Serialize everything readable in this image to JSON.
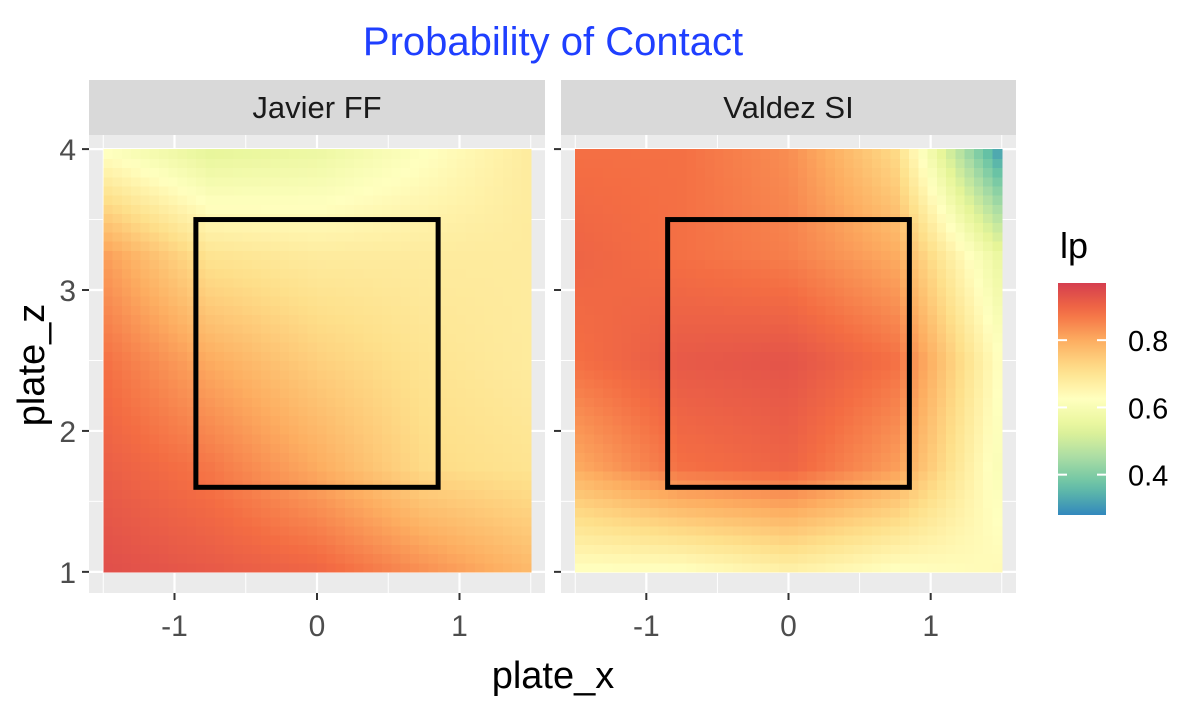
{
  "chart_data": {
    "type": "heatmap",
    "title": "Probability of Contact",
    "xlabel": "plate_x",
    "ylabel": "plate_z",
    "xlim": [
      -1.6,
      1.6
    ],
    "ylim": [
      0.85,
      4.1
    ],
    "x_ticks": [
      -1,
      0,
      1
    ],
    "x_tick_labels": [
      "-1",
      "0",
      "1"
    ],
    "y_ticks": [
      1,
      2,
      3,
      4
    ],
    "y_tick_labels": [
      "1",
      "2",
      "3",
      "4"
    ],
    "grid": true,
    "grid_range": {
      "x": [
        -1.5,
        1.5
      ],
      "z": [
        1.0,
        4.0
      ]
    },
    "strike_zone": {
      "x": [
        -0.85,
        0.85
      ],
      "z": [
        1.6,
        3.5
      ]
    },
    "panels": [
      {
        "name": "Javier FF",
        "z_x_coords": [
          -1.5,
          -0.75,
          0,
          0.75,
          1.5
        ],
        "z_z_coords": [
          4.0,
          3.25,
          2.5,
          1.75,
          1.0
        ],
        "lp_grid": [
          [
            0.62,
            0.54,
            0.56,
            0.62,
            0.68
          ],
          [
            0.82,
            0.7,
            0.68,
            0.68,
            0.68
          ],
          [
            0.88,
            0.8,
            0.74,
            0.7,
            0.68
          ],
          [
            0.91,
            0.87,
            0.8,
            0.72,
            0.7
          ],
          [
            0.94,
            0.92,
            0.9,
            0.84,
            0.78
          ]
        ]
      },
      {
        "name": "Valdez SI",
        "z_x_coords": [
          -1.5,
          -0.75,
          0,
          0.75,
          1.5
        ],
        "z_z_coords": [
          4.0,
          3.25,
          2.5,
          1.75,
          1.0
        ],
        "lp_grid": [
          [
            0.88,
            0.88,
            0.84,
            0.72,
            0.3
          ],
          [
            0.9,
            0.88,
            0.86,
            0.8,
            0.55
          ],
          [
            0.88,
            0.92,
            0.93,
            0.88,
            0.62
          ],
          [
            0.8,
            0.88,
            0.9,
            0.82,
            0.6
          ],
          [
            0.62,
            0.62,
            0.66,
            0.62,
            0.64
          ]
        ]
      }
    ],
    "legend": {
      "title": "lp",
      "position": "right",
      "range": [
        0.28,
        0.97
      ],
      "breaks": [
        0.4,
        0.6,
        0.8
      ],
      "break_labels": [
        "0.4",
        "0.6",
        "0.8"
      ],
      "palette": "Spectral",
      "colors": [
        "#3288bd",
        "#66c2a5",
        "#abdda4",
        "#e6f598",
        "#ffffbf",
        "#fee08b",
        "#fdae61",
        "#f46d43",
        "#d53e4f"
      ]
    }
  }
}
